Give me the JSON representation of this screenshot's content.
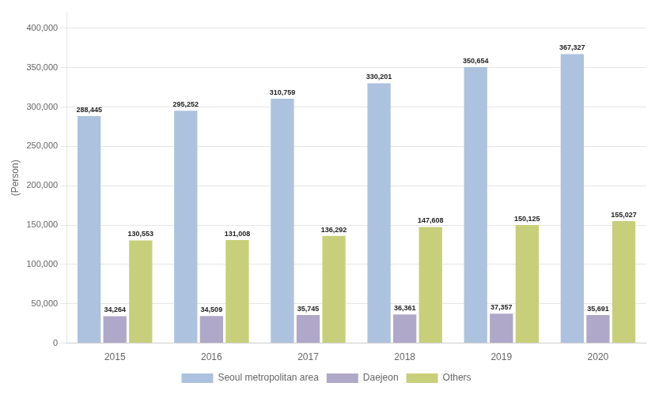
{
  "chart_data": {
    "type": "bar",
    "categories": [
      "2015",
      "2016",
      "2017",
      "2018",
      "2019",
      "2020"
    ],
    "series": [
      {
        "name": "Seoul metropolitan area",
        "color": "#adc2de",
        "values": [
          288445,
          295252,
          310759,
          330201,
          350654,
          367327
        ],
        "value_labels": [
          "288,445",
          "295,252",
          "310,759",
          "330,201",
          "350,654",
          "367,327"
        ]
      },
      {
        "name": "Daejeon",
        "color": "#b0a8c8",
        "values": [
          34264,
          34509,
          35745,
          36361,
          37357,
          35691
        ],
        "value_labels": [
          "34,264",
          "34,509",
          "35,745",
          "36,361",
          "37,357",
          "35,691"
        ]
      },
      {
        "name": "Others",
        "color": "#c8cf7a",
        "values": [
          130553,
          131008,
          136292,
          147608,
          150125,
          155027
        ],
        "value_labels": [
          "130,553",
          "131,008",
          "136,292",
          "147,608",
          "150,125",
          "155,027"
        ]
      }
    ],
    "ylim": [
      0,
      420000
    ],
    "yticks": [
      0,
      {
        "value": 50000,
        "label": "50,000"
      },
      {
        "value": 100000,
        "label": "100,000"
      },
      {
        "value": 150000,
        "label": "150,000"
      },
      {
        "value": 200000,
        "label": "200,000"
      },
      {
        "value": 250000,
        "label": "250,000"
      },
      {
        "value": 300000,
        "label": "300,000"
      },
      {
        "value": 350000,
        "label": "350,000"
      },
      {
        "value": 400000,
        "label": "400,000"
      }
    ],
    "ylabel": "(Person)",
    "grid": true,
    "legend": "bottom",
    "data_labels": true
  }
}
